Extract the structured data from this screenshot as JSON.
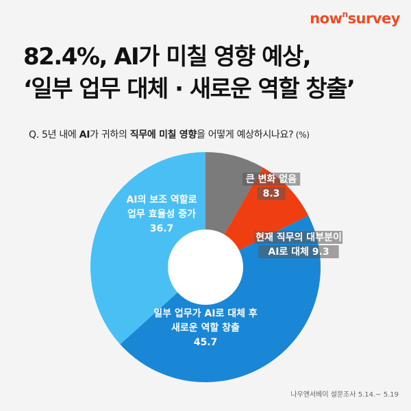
{
  "brand": {
    "prefix": "now",
    "sup": "n",
    "suffix": "survey"
  },
  "title": {
    "line1": "82.4%, AI가 미칠 영향 예상,",
    "line2": "‘일부 업무 대체 · 새로운 역할 창출’"
  },
  "question": {
    "q": "Q. 5년 내에 ",
    "b1": "AI",
    "t1": "가 귀하의 ",
    "b2": "직무에 미칠 영향",
    "t2": "을 어떻게 예상하시나요?",
    "unit": " (%)"
  },
  "source": "나우앤서베이 설문조사 5.14.~ 5.19",
  "colors": {
    "blue": "#1a86d6",
    "light_blue": "#49bff3",
    "gray": "#7b7b7b",
    "red": "#ee3e12",
    "hole": "#ffffff"
  },
  "chart_data": {
    "type": "pie",
    "donut": true,
    "unit": "%",
    "slices": [
      {
        "label_lines": [
          "일부 업무가 AI로 대체 후",
          "새로운 역할 창출"
        ],
        "value": 45.7,
        "color": "#1a86d6",
        "label_style": "plain"
      },
      {
        "label_lines": [
          "AI의 보조 역할로",
          "업무 효율성 증가"
        ],
        "value": 36.7,
        "color": "#49bff3",
        "label_style": "plain"
      },
      {
        "label_lines": [
          "큰 변화 없음"
        ],
        "value": 8.3,
        "color": "#7b7b7b",
        "label_style": "boxed"
      },
      {
        "label_lines": [
          "현재 직무의 대부분이",
          "AI로 대체"
        ],
        "value": 9.3,
        "color": "#ee3e12",
        "label_style": "boxed"
      }
    ]
  }
}
